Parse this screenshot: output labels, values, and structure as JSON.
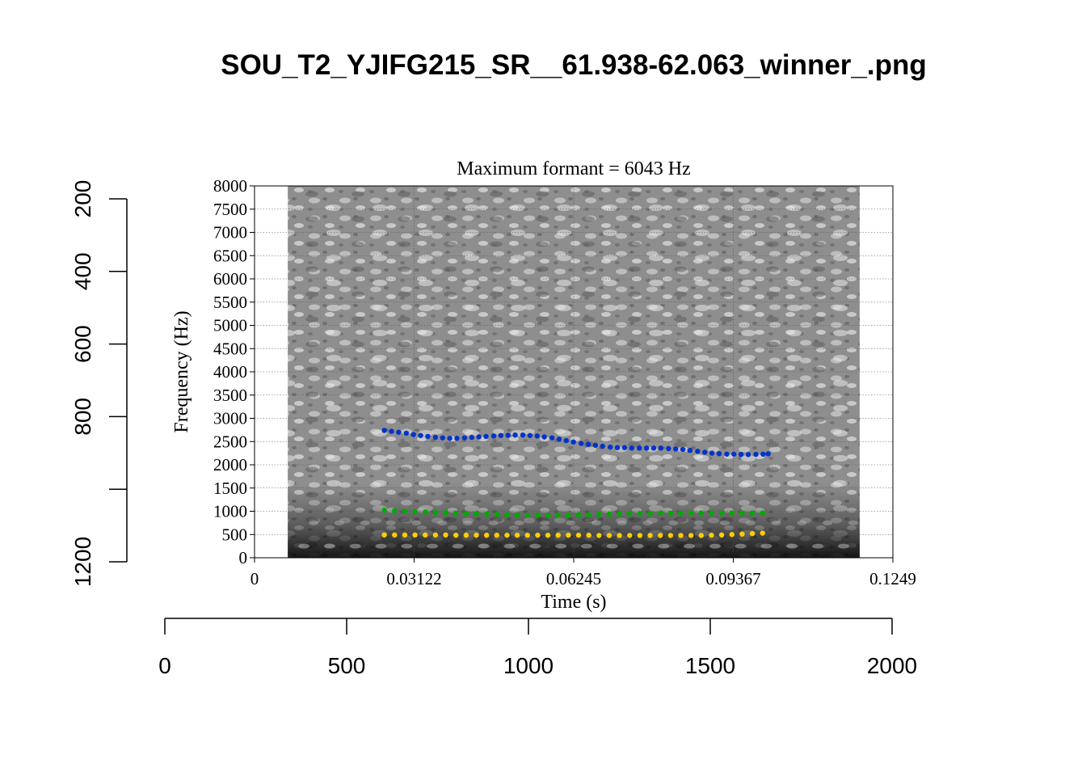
{
  "page_title": "SOU_T2_YJIFG215_SR__61.938-62.063_winner_.png",
  "chart_data": {
    "type": "scatter",
    "title": "Maximum formant  =  6043 Hz",
    "xlabel": "Time (s)",
    "ylabel": "Frequency (Hz)",
    "xlim": [
      0,
      0.1249
    ],
    "ylim": [
      0,
      8000
    ],
    "x_ticks": [
      "0",
      "0.03122",
      "0.06245",
      "0.09367",
      "0.1249"
    ],
    "y_ticks": [
      "0",
      "500",
      "1000",
      "1500",
      "2000",
      "2500",
      "3000",
      "3500",
      "4000",
      "4500",
      "5000",
      "5500",
      "6000",
      "6500",
      "7000",
      "7500",
      "8000"
    ],
    "grid": true,
    "spectrogram_extent_s": [
      0.0065,
      0.1184
    ],
    "series": [
      {
        "color": "#ffcc00",
        "x": [
          0.0254,
          0.0274,
          0.0294,
          0.0314,
          0.0334,
          0.0354,
          0.0374,
          0.0394,
          0.0414,
          0.0434,
          0.0454,
          0.0474,
          0.0494,
          0.0514,
          0.0534,
          0.0554,
          0.0574,
          0.0594,
          0.0614,
          0.0634,
          0.0654,
          0.0674,
          0.0694,
          0.0714,
          0.0734,
          0.0754,
          0.0774,
          0.0794,
          0.0814,
          0.0834,
          0.0854,
          0.0874,
          0.0894,
          0.0914,
          0.0934,
          0.0954,
          0.0974,
          0.0994
        ],
        "values": [
          490,
          490,
          490,
          490,
          490,
          490,
          490,
          485,
          485,
          485,
          485,
          485,
          485,
          485,
          485,
          485,
          485,
          485,
          485,
          485,
          485,
          480,
          480,
          480,
          480,
          480,
          480,
          480,
          480,
          480,
          480,
          480,
          485,
          490,
          500,
          510,
          520,
          530
        ]
      },
      {
        "color": "#00aa00",
        "x": [
          0.0254,
          0.0274,
          0.0294,
          0.0314,
          0.0334,
          0.0354,
          0.0374,
          0.0394,
          0.0414,
          0.0434,
          0.0454,
          0.0474,
          0.0494,
          0.0514,
          0.0534,
          0.0554,
          0.0574,
          0.0594,
          0.0614,
          0.0634,
          0.0654,
          0.0674,
          0.0694,
          0.0714,
          0.0734,
          0.0754,
          0.0774,
          0.0794,
          0.0814,
          0.0834,
          0.0854,
          0.0874,
          0.0894,
          0.0914,
          0.0934,
          0.0954,
          0.0974,
          0.0994
        ],
        "values": [
          1020,
          1010,
          1000,
          990,
          985,
          975,
          970,
          960,
          955,
          950,
          940,
          935,
          925,
          920,
          915,
          915,
          910,
          915,
          915,
          920,
          925,
          930,
          935,
          940,
          945,
          950,
          955,
          960,
          960,
          960,
          965,
          965,
          965,
          965,
          965,
          965,
          965,
          965
        ]
      },
      {
        "color": "#0033cc",
        "x": [
          0.0254,
          0.0268,
          0.0282,
          0.0297,
          0.0311,
          0.0325,
          0.0339,
          0.0354,
          0.0368,
          0.0382,
          0.0396,
          0.0411,
          0.0425,
          0.0439,
          0.0453,
          0.0468,
          0.0482,
          0.0496,
          0.051,
          0.0525,
          0.0539,
          0.0553,
          0.0567,
          0.0582,
          0.0596,
          0.061,
          0.0624,
          0.0639,
          0.0653,
          0.0667,
          0.0681,
          0.0696,
          0.071,
          0.0724,
          0.0738,
          0.0753,
          0.0767,
          0.0781,
          0.0795,
          0.081,
          0.0824,
          0.0838,
          0.0852,
          0.0867,
          0.0881,
          0.0895,
          0.0909,
          0.0924,
          0.0938,
          0.0952,
          0.0966,
          0.0981,
          0.0995,
          0.1005
        ],
        "values": [
          2740,
          2720,
          2700,
          2680,
          2650,
          2630,
          2610,
          2590,
          2580,
          2570,
          2570,
          2580,
          2590,
          2600,
          2610,
          2620,
          2630,
          2635,
          2640,
          2640,
          2630,
          2620,
          2600,
          2580,
          2550,
          2520,
          2490,
          2460,
          2440,
          2420,
          2400,
          2380,
          2370,
          2370,
          2360,
          2360,
          2360,
          2360,
          2360,
          2350,
          2340,
          2330,
          2310,
          2290,
          2270,
          2250,
          2240,
          2230,
          2230,
          2225,
          2220,
          2225,
          2230,
          2235
        ]
      }
    ]
  },
  "outer_axes": {
    "x_ticks": [
      "0",
      "500",
      "1000",
      "1500",
      "2000"
    ],
    "x_range": [
      0,
      2000
    ],
    "y_ticks": [
      "200",
      "400",
      "600",
      "800",
      "1200"
    ],
    "y_range": [
      0,
      1200
    ]
  }
}
